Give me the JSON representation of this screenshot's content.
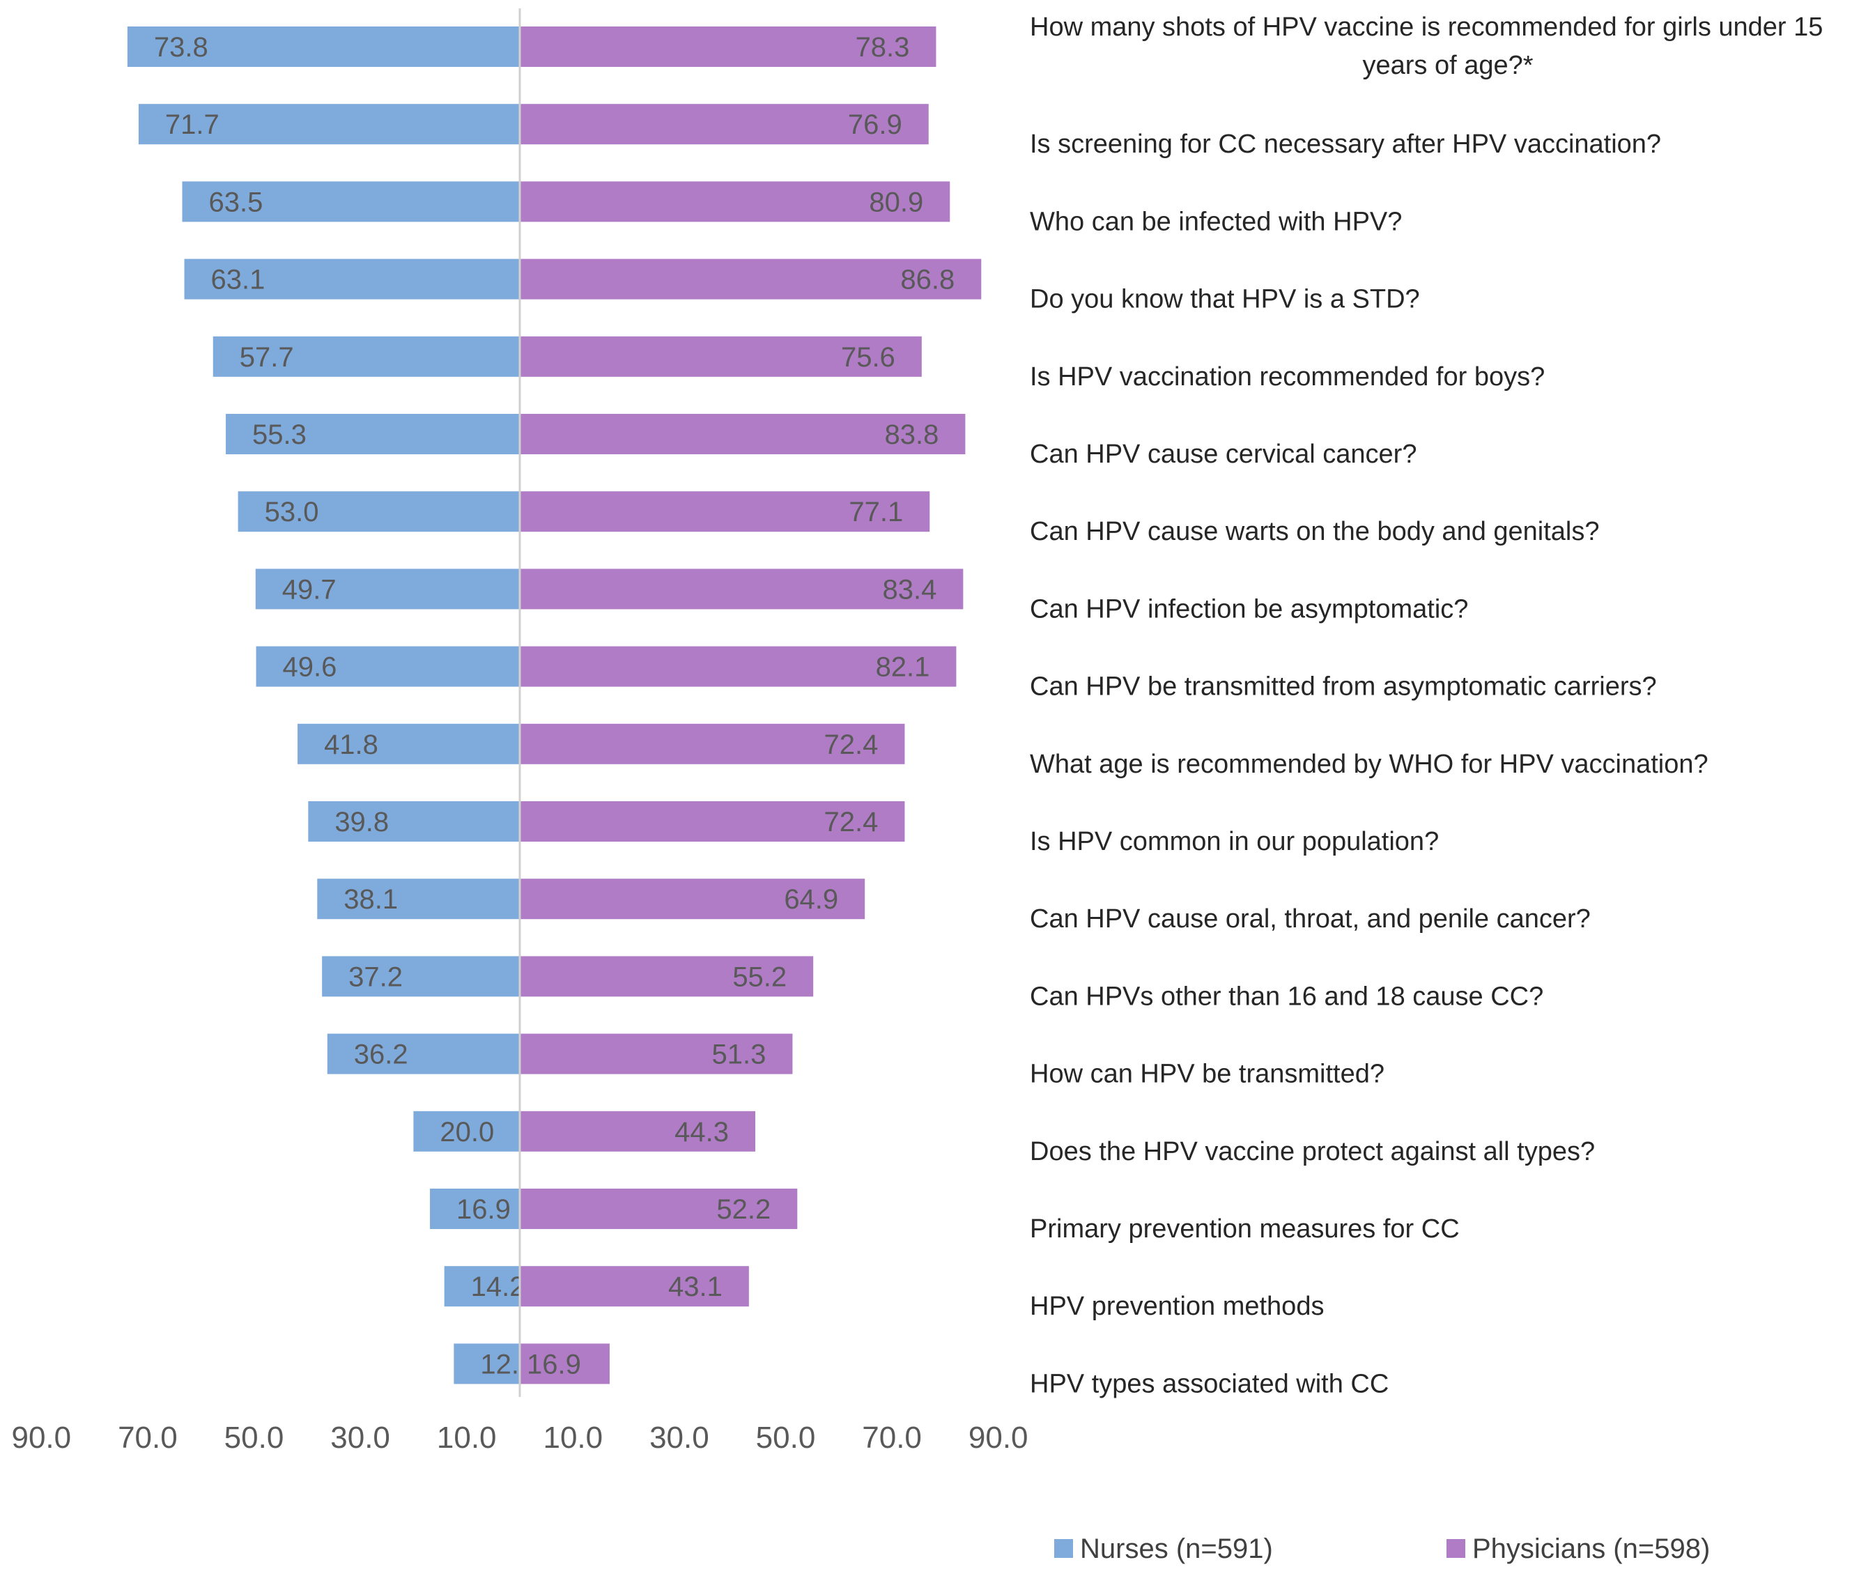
{
  "chart_data": {
    "type": "bar",
    "orientation": "horizontal",
    "layout": "diverging",
    "categories": [
      "How many shots of HPV vaccine is recommended for girls under 15 years of age?*",
      "Is screening for CC necessary after HPV vaccination?",
      "Who can be infected with HPV?",
      "Do you know that HPV is a STD?",
      "Is HPV vaccination recommended for boys?",
      "Can HPV cause cervical cancer?",
      "Can HPV cause warts on the body and genitals?",
      "Can HPV infection be asymptomatic?",
      "Can HPV be transmitted from asymptomatic carriers?",
      "What age is recommended by WHO for HPV vaccination?",
      "Is HPV common in our population?",
      "Can HPV cause oral, throat, and penile cancer?",
      "Can HPVs other than 16 and 18 cause CC?",
      "How can HPV be transmitted?",
      "Does the HPV vaccine protect against all types?",
      "Primary prevention measures for CC",
      "HPV prevention methods",
      "HPV types associated with CC"
    ],
    "category_lines": [
      [
        "How many shots of HPV vaccine is recommended for girls under 15",
        "years of age?*"
      ],
      [
        "Is screening for CC necessary after HPV vaccination?"
      ],
      [
        "Who can be infected with HPV?"
      ],
      [
        "Do you know that HPV is a STD?"
      ],
      [
        "Is HPV vaccination recommended for boys?"
      ],
      [
        "Can HPV cause cervical cancer?"
      ],
      [
        "Can HPV cause warts on the body and genitals?"
      ],
      [
        "Can HPV infection be asymptomatic?"
      ],
      [
        "Can HPV be transmitted from asymptomatic carriers?"
      ],
      [
        "What age is recommended by WHO for HPV vaccination?"
      ],
      [
        "Is HPV common in our population?"
      ],
      [
        "Can HPV cause oral, throat, and penile cancer?"
      ],
      [
        "Can HPVs other than 16 and 18 cause CC?"
      ],
      [
        "How can HPV be transmitted?"
      ],
      [
        "Does the HPV vaccine protect against all types?"
      ],
      [
        "Primary prevention measures for CC"
      ],
      [
        "HPV prevention methods"
      ],
      [
        "HPV types associated with CC"
      ]
    ],
    "series": [
      {
        "name": "Nurses (n=591)",
        "side": "left",
        "color": "#7faadc",
        "values": [
          73.8,
          71.7,
          63.5,
          63.1,
          57.7,
          55.3,
          53.0,
          49.7,
          49.6,
          41.8,
          39.8,
          38.1,
          37.2,
          36.2,
          20.0,
          16.9,
          14.2,
          12.4
        ],
        "labels": [
          "73.8",
          "71.7",
          "63.5",
          "63.1",
          "57.7",
          "55.3",
          "53.0",
          "49.7",
          "49.6",
          "41.8",
          "39.8",
          "38.1",
          "37.2",
          "36.2",
          "20.0",
          "16.9",
          "14.2",
          "12.4"
        ]
      },
      {
        "name": "Physicians (n=598)",
        "side": "right",
        "color": "#b07cc6",
        "values": [
          78.3,
          76.9,
          80.9,
          86.8,
          75.6,
          83.8,
          77.1,
          83.4,
          82.1,
          72.4,
          72.4,
          64.9,
          55.2,
          51.3,
          44.3,
          52.2,
          43.1,
          16.9
        ],
        "labels": [
          "78.3",
          "76.9",
          "80.9",
          "86.8",
          "75.6",
          "83.8",
          "77.1",
          "83.4",
          "82.1",
          "72.4",
          "72.4",
          "64.9",
          "55.2",
          "51.3",
          "44.3",
          "52.2",
          "43.1",
          "16.9"
        ]
      }
    ],
    "xlim": [
      -90,
      90
    ],
    "x_ticks": [
      "90.0",
      "70.0",
      "50.0",
      "30.0",
      "10.0",
      "10.0",
      "30.0",
      "50.0",
      "70.0",
      "90.0"
    ],
    "x_tick_values": [
      -90,
      -70,
      -50,
      -30,
      -10,
      10,
      30,
      50,
      70,
      90
    ],
    "title": "",
    "xlabel": "",
    "ylabel": "",
    "grid": false,
    "legend_position": "bottom-right"
  }
}
